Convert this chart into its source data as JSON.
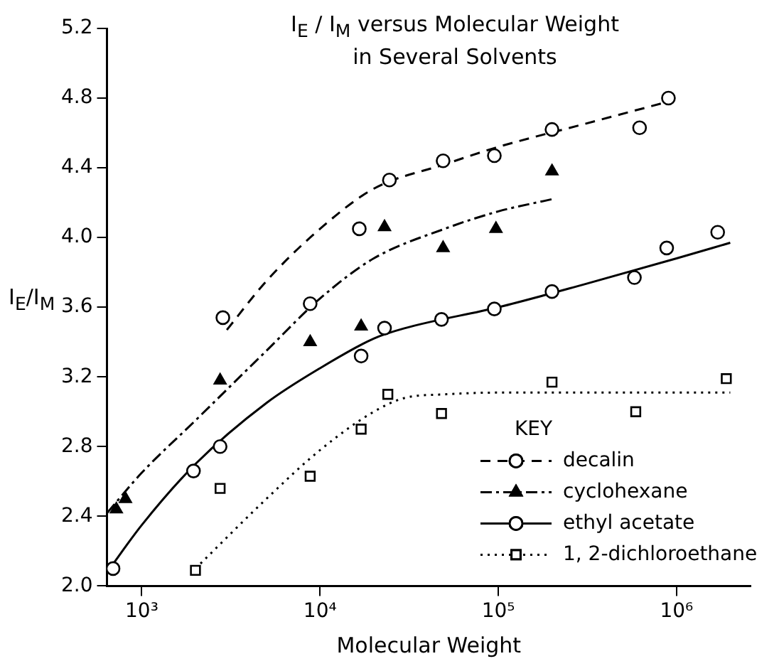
{
  "chart_data": {
    "type": "scatter",
    "title": "I$_{E}$ / I$_{M}$  versus Molecular Weight\nin Several Solvents",
    "xlabel": "Molecular Weight",
    "ylabel": "I$_{E}$/I$_{M}$",
    "legend_title": "KEY",
    "legend": "bottom right",
    "log": "x",
    "grid": false,
    "xlim": [
      638,
      2600000
    ],
    "xticks": [
      {
        "value": 1000,
        "label": "10³"
      },
      {
        "value": 10000,
        "label": "10⁴"
      },
      {
        "value": 100000,
        "label": "10⁵"
      },
      {
        "value": 1000000,
        "label": "10⁶"
      }
    ],
    "ylim": [
      2.0,
      5.2
    ],
    "yticks": [
      {
        "value": 2,
        "label": "2.0"
      },
      2.4,
      2.8,
      3.2,
      3.6,
      {
        "value": 4,
        "label": "4.0"
      },
      4.4,
      4.8,
      5.2
    ],
    "series": [
      {
        "marker": "circle",
        "color": "#000000",
        "x": [
          2850,
          8800,
          16600,
          24500,
          49000,
          95000,
          200000,
          620000,
          900000
        ],
        "values": [
          3.54,
          3.62,
          4.05,
          4.33,
          4.44,
          4.47,
          4.62,
          4.63,
          4.8
        ]
      },
      {
        "type": "line",
        "name": "decalin",
        "color": "#000000",
        "line_style": "dashed",
        "marker": "none",
        "x": [
          3000,
          5000,
          10000,
          20000,
          50000,
          100000,
          300000,
          900000
        ],
        "values": [
          3.47,
          3.75,
          4.05,
          4.28,
          4.42,
          4.52,
          4.65,
          4.78
        ]
      },
      {
        "marker": "triangle",
        "color": "#000000",
        "x": [
          720,
          810,
          2750,
          8800,
          17000,
          23000,
          49000,
          97000,
          200000
        ],
        "values": [
          2.44,
          2.5,
          3.18,
          3.4,
          3.49,
          4.06,
          3.94,
          4.05,
          4.38
        ]
      },
      {
        "type": "line",
        "name": "cyclohexane",
        "color": "#000000",
        "line_style": "dashdot",
        "marker": "none",
        "x": [
          640,
          1000,
          2000,
          5000,
          10000,
          20000,
          50000,
          100000,
          200000
        ],
        "values": [
          2.42,
          2.65,
          2.95,
          3.35,
          3.65,
          3.88,
          4.05,
          4.15,
          4.22
        ]
      },
      {
        "marker": "circle",
        "color": "#000000",
        "x": [
          690,
          1950,
          2750,
          17000,
          23000,
          48000,
          95000,
          200000,
          580000,
          880000,
          1700000
        ],
        "values": [
          2.1,
          2.66,
          2.8,
          3.32,
          3.48,
          3.53,
          3.59,
          3.69,
          3.77,
          3.94,
          4.03
        ]
      },
      {
        "type": "line",
        "name": "ethyl acetate",
        "color": "#000000",
        "line_style": "solid",
        "marker": "none",
        "x": [
          640,
          1000,
          2000,
          5000,
          10000,
          20000,
          30000,
          100000,
          300000,
          1000000,
          2000000
        ],
        "values": [
          2.08,
          2.35,
          2.7,
          3.05,
          3.25,
          3.42,
          3.48,
          3.6,
          3.73,
          3.88,
          3.97
        ]
      },
      {
        "marker": "square",
        "color": "#000000",
        "x": [
          2000,
          2750,
          8800,
          17000,
          24000,
          48000,
          200000,
          590000,
          1900000
        ],
        "values": [
          2.09,
          2.56,
          2.63,
          2.9,
          3.1,
          2.99,
          3.17,
          3.0,
          3.19
        ]
      },
      {
        "type": "line",
        "name": "1, 2-dichloroethane",
        "color": "#000000",
        "line_style": "dotted",
        "marker": "none",
        "x": [
          2000,
          5000,
          10000,
          20000,
          30000,
          50000,
          100000,
          2000000
        ],
        "values": [
          2.1,
          2.5,
          2.78,
          3.0,
          3.08,
          3.1,
          3.11,
          3.11
        ]
      }
    ]
  }
}
